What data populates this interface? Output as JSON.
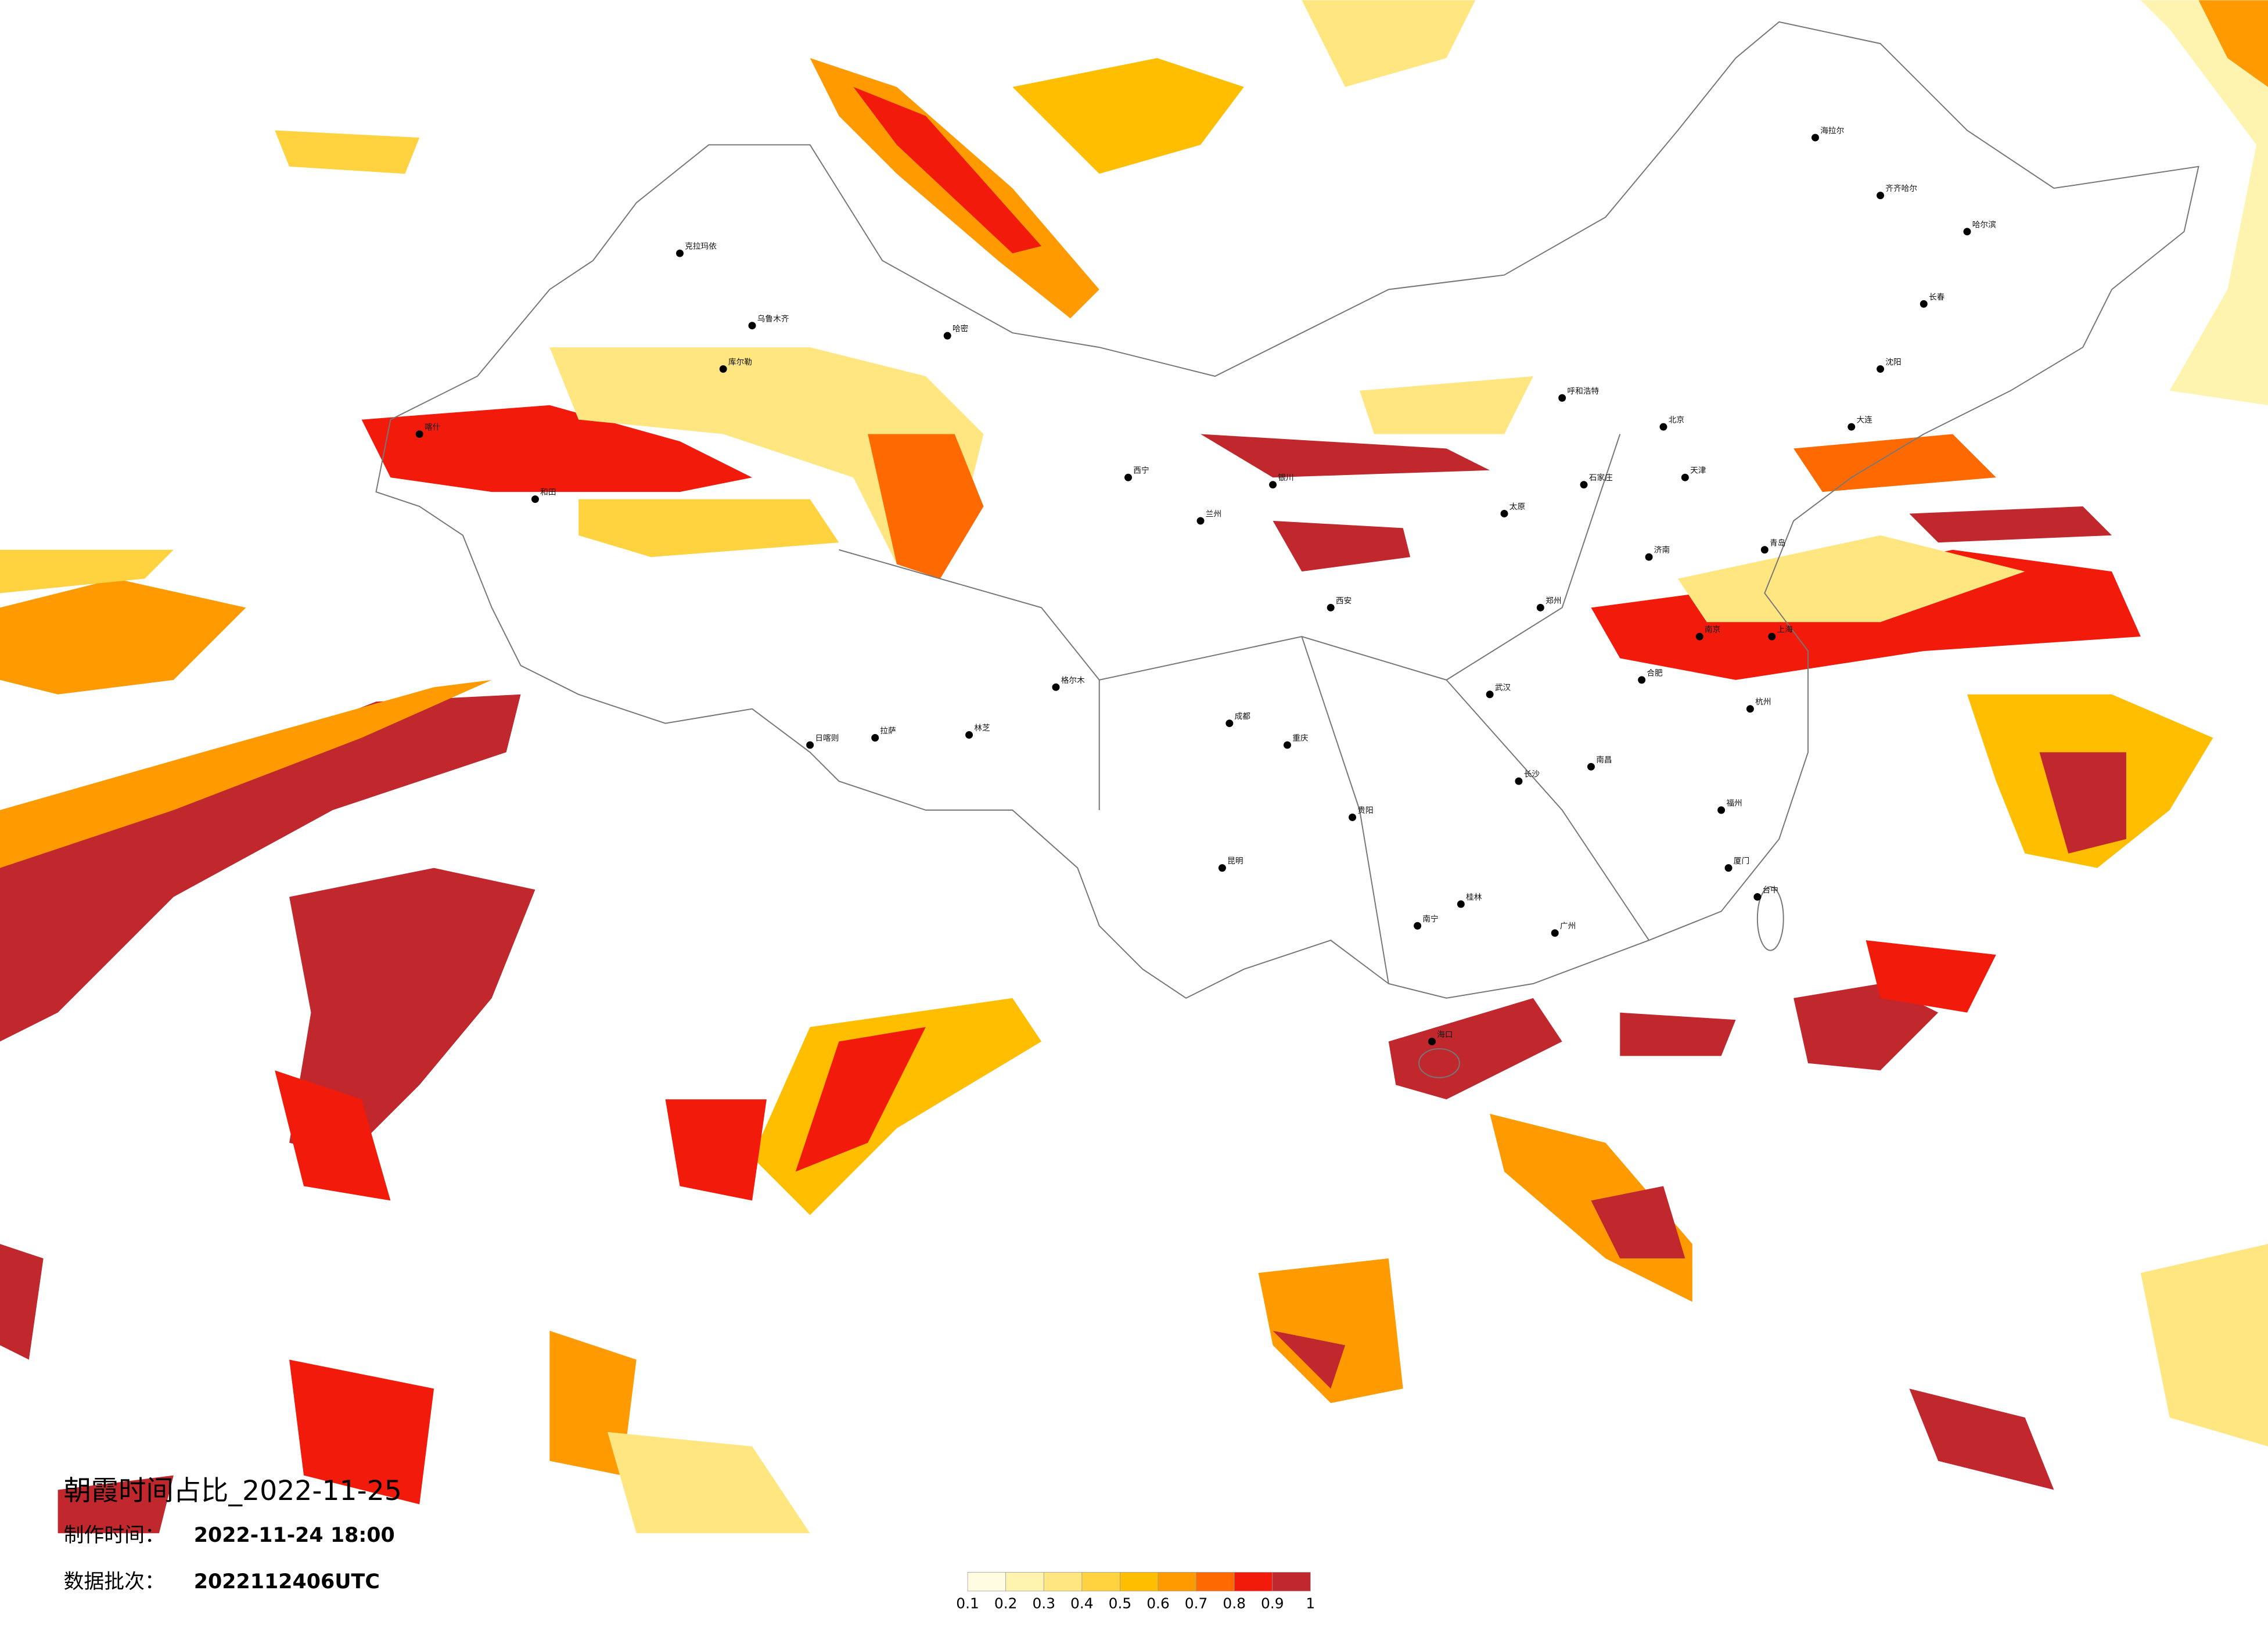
{
  "title": "朝霞时间占比_2022-11-25",
  "info": [
    {
      "label": "制作时间：",
      "value": "2022-11-24 18:00"
    },
    {
      "label": "数据批次：",
      "value": "2022112406UTC"
    }
  ],
  "colorbar": {
    "ticks": [
      0.1,
      0.2,
      0.3,
      0.4,
      0.5,
      0.6,
      0.7,
      0.8,
      0.9,
      1
    ],
    "colors": [
      "#fffbe0",
      "#fff3b0",
      "#ffe680",
      "#ffd240",
      "#ffbe00",
      "#ff9a00",
      "#ff6a00",
      "#f21a0a",
      "#c0282d"
    ]
  },
  "cities": [
    "北京",
    "天津",
    "石家庄",
    "太原",
    "呼和浩特",
    "济南",
    "郑州",
    "西安",
    "兰州",
    "西宁",
    "银川",
    "武汉",
    "长沙",
    "南昌",
    "合肥",
    "南京",
    "上海",
    "杭州",
    "福州",
    "广州",
    "南宁",
    "贵阳",
    "昆明",
    "成都",
    "重庆",
    "拉萨",
    "乌鲁木齐",
    "哈尔滨",
    "长春",
    "沈阳",
    "海拉尔",
    "齐齐哈尔",
    "克拉玛依",
    "库尔勒",
    "喀什",
    "和田",
    "哈密",
    "格尔木",
    "日喀则",
    "林芝",
    "台中",
    "海口",
    "大连",
    "青岛",
    "厦门",
    "桂林"
  ]
}
